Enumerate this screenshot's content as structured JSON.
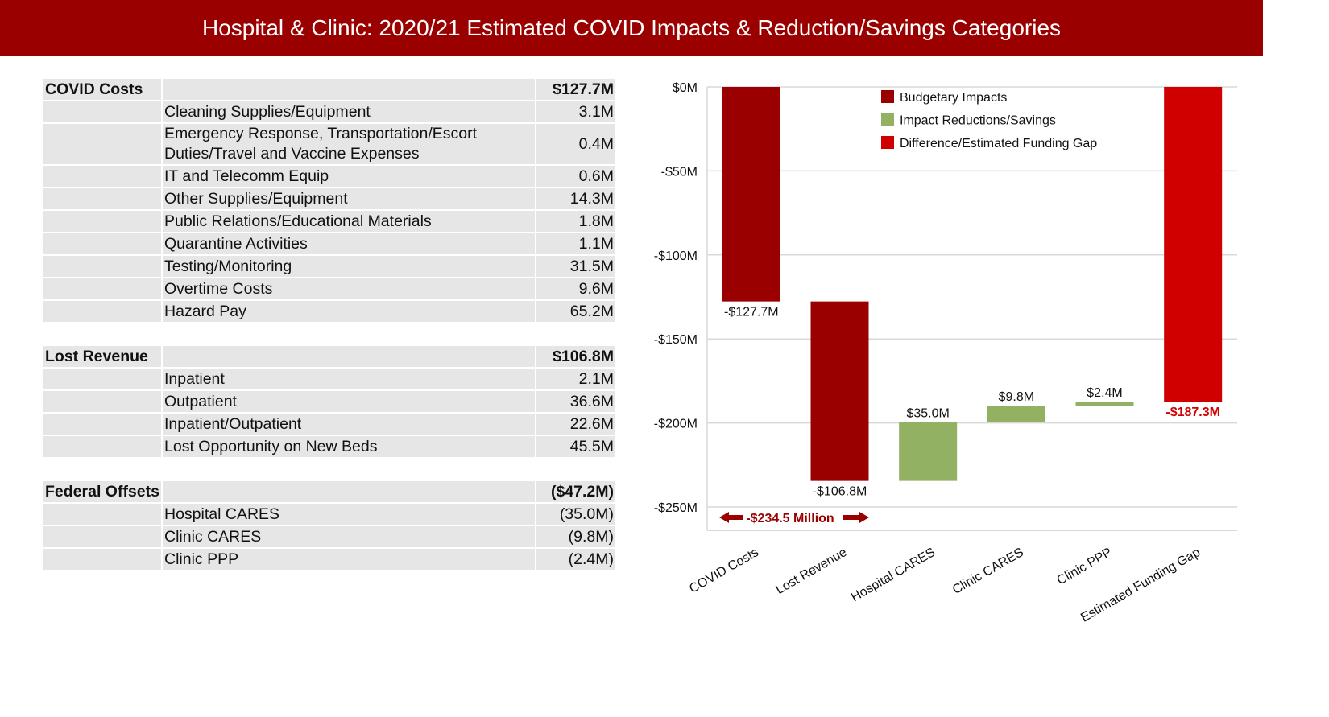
{
  "title": "Hospital & Clinic: 2020/21 Estimated COVID Impacts & Reduction/Savings Categories",
  "tables": [
    {
      "header": "COVID Costs",
      "total": "$127.7M",
      "rows": [
        {
          "label": "Cleaning Supplies/Equipment",
          "value": "3.1M"
        },
        {
          "label": "Emergency Response, Transportation/Escort Duties/Travel and Vaccine Expenses",
          "value": "0.4M"
        },
        {
          "label": "IT and Telecomm Equip",
          "value": "0.6M"
        },
        {
          "label": "Other Supplies/Equipment",
          "value": "14.3M"
        },
        {
          "label": "Public Relations/Educational Materials",
          "value": "1.8M"
        },
        {
          "label": "Quarantine Activities",
          "value": "1.1M"
        },
        {
          "label": "Testing/Monitoring",
          "value": "31.5M"
        },
        {
          "label": "Overtime Costs",
          "value": "9.6M"
        },
        {
          "label": "Hazard Pay",
          "value": "65.2M"
        }
      ]
    },
    {
      "header": "Lost Revenue",
      "total": "$106.8M",
      "rows": [
        {
          "label": "Inpatient",
          "value": "2.1M"
        },
        {
          "label": "Outpatient",
          "value": "36.6M"
        },
        {
          "label": "Inpatient/Outpatient",
          "value": "22.6M"
        },
        {
          "label": "Lost Opportunity on New Beds",
          "value": "45.5M"
        }
      ]
    },
    {
      "header": "Federal Offsets",
      "total": "($47.2M)",
      "rows": [
        {
          "label": "Hospital CARES",
          "value": "(35.0M)"
        },
        {
          "label": "Clinic CARES",
          "value": "(9.8M)"
        },
        {
          "label": "Clinic PPP",
          "value": "(2.4M)"
        }
      ]
    }
  ],
  "chart_data": {
    "type": "bar",
    "subtype": "waterfall",
    "categories": [
      "COVID Costs",
      "Lost Revenue",
      "Hospital CARES",
      "Clinic CARES",
      "Clinic PPP",
      "Estimated Funding Gap"
    ],
    "values": [
      -127.7,
      -106.8,
      35.0,
      9.8,
      2.4,
      -187.3
    ],
    "kinds": [
      "Budgetary Impacts",
      "Budgetary Impacts",
      "Impact Reductions/Savings",
      "Impact Reductions/Savings",
      "Impact Reductions/Savings",
      "Difference/Estimated Funding Gap"
    ],
    "data_labels": [
      "-$127.7M",
      "-$106.8M",
      "$35.0M",
      "$9.8M",
      "$2.4M",
      "-$187.3M"
    ],
    "yticks": [
      "$0M",
      "-$50M",
      "-$100M",
      "-$150M",
      "-$200M",
      "-$250M"
    ],
    "ytick_values": [
      0,
      -50,
      -100,
      -150,
      -200,
      -250
    ],
    "ylim": [
      -264,
      0
    ],
    "grid": true,
    "legend": {
      "position": "top-center",
      "entries": [
        {
          "name": "Budgetary Impacts",
          "color": "#9b0000"
        },
        {
          "name": "Impact Reductions/Savings",
          "color": "#92b163"
        },
        {
          "name": "Difference/Estimated Funding Gap",
          "color": "#d00000"
        }
      ]
    },
    "annotation": "-$234.5 Million",
    "annotation_color": "#9b0000"
  }
}
